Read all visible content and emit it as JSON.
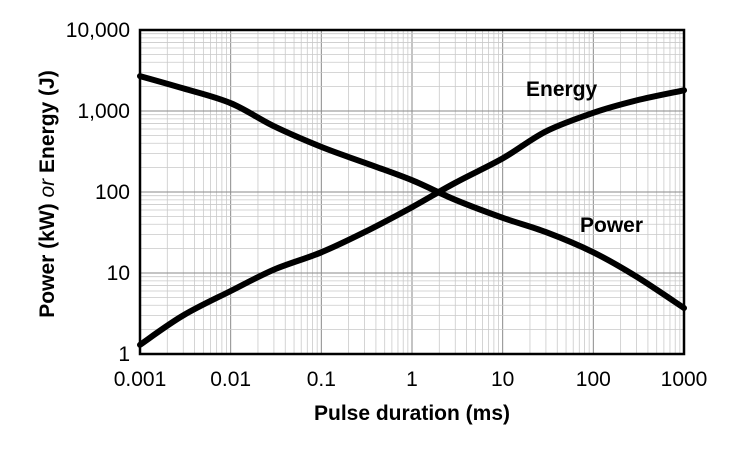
{
  "chart_data": {
    "type": "line",
    "xlabel": "Pulse duration (ms)",
    "ylabel_parts": [
      "Power (kW) ",
      "or",
      " Energy (J)"
    ],
    "x_scale": "log",
    "y_scale": "log",
    "xlim": [
      0.001,
      1000
    ],
    "ylim": [
      1,
      10000
    ],
    "grid": true,
    "x_ticks": [
      0.001,
      0.01,
      0.1,
      1,
      10,
      100,
      1000
    ],
    "x_tick_labels": [
      "0.001",
      "0.01",
      "0.1",
      "1",
      "10",
      "100",
      "1000"
    ],
    "y_ticks": [
      1,
      10,
      100,
      1000,
      10000
    ],
    "y_tick_labels": [
      "1",
      "10",
      "100",
      "1,000",
      "10,000"
    ],
    "series": [
      {
        "name": "Energy",
        "x": [
          0.001,
          0.003,
          0.01,
          0.03,
          0.1,
          0.3,
          1,
          3,
          10,
          30,
          100,
          300,
          1000
        ],
        "y": [
          1.3,
          3,
          6,
          11,
          18,
          32,
          65,
          130,
          260,
          560,
          950,
          1350,
          1800
        ]
      },
      {
        "name": "Power",
        "x": [
          0.001,
          0.003,
          0.01,
          0.03,
          0.1,
          0.3,
          1,
          3,
          10,
          30,
          100,
          300,
          1000
        ],
        "y": [
          2700,
          1900,
          1250,
          650,
          360,
          230,
          140,
          80,
          48,
          32,
          18,
          9,
          3.7
        ]
      }
    ]
  }
}
